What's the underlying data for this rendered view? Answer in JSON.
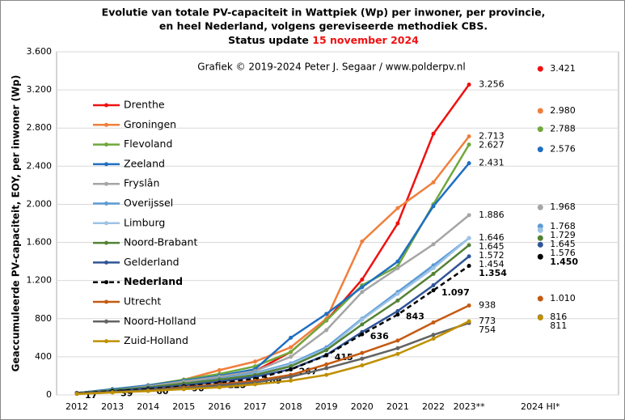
{
  "chart_data": {
    "type": "line",
    "title": [
      "Evolutie van totale PV-capaciteit in Wattpiek (Wp) per inwoner, per provincie,",
      "en heel Nederland, volgens gereviseerde methodiek CBS."
    ],
    "status_label": "Status update",
    "status_date": "15 november 2024",
    "annotation": "Grafiek © 2019-2024 Peter J. Segaar / www.polderpv.nl",
    "ylabel": "Geaccumuleerde PV-capaciteit, EOY, per inwoner (Wp)",
    "categories": [
      "2012",
      "2013",
      "2014",
      "2015",
      "2016",
      "2017",
      "2018",
      "2019",
      "2020",
      "2021",
      "2022",
      "2023**",
      null,
      "2024 HI*"
    ],
    "ylim": [
      0,
      3600
    ],
    "yticks": [
      0,
      400,
      800,
      {
        "value": 1200,
        "label": "1.200"
      },
      {
        "value": 1600,
        "label": "1.600"
      },
      {
        "value": 2000,
        "label": "2.000"
      },
      {
        "value": 2400,
        "label": "2.400"
      },
      {
        "value": 2800,
        "label": "2.800"
      },
      {
        "value": 3200,
        "label": "3.200"
      },
      {
        "value": 3600,
        "label": "3.600"
      }
    ],
    "grid": true,
    "legend": "upper left",
    "series": [
      {
        "name": "Drenthe",
        "color": "#ee1111",
        "values": [
          20,
          50,
          80,
          130,
          180,
          250,
          450,
          780,
          1210,
          1800,
          2740,
          3256,
          null,
          3421
        ],
        "value_labels": [
          null,
          null,
          null,
          null,
          null,
          null,
          null,
          null,
          null,
          null,
          null,
          "3.256",
          null,
          "3.421"
        ]
      },
      {
        "name": "Groningen",
        "color": "#f07f3c",
        "values": [
          20,
          50,
          100,
          160,
          260,
          350,
          500,
          800,
          1610,
          1960,
          2230,
          2713,
          null,
          2980
        ],
        "value_labels": [
          null,
          null,
          null,
          null,
          null,
          null,
          null,
          null,
          null,
          null,
          null,
          "2.713",
          null,
          "2.980"
        ]
      },
      {
        "name": "Flevoland",
        "color": "#70a83b",
        "values": [
          20,
          60,
          100,
          160,
          220,
          300,
          450,
          780,
          1150,
          1350,
          2000,
          2627,
          null,
          2788
        ],
        "value_labels": [
          null,
          null,
          null,
          null,
          null,
          null,
          null,
          null,
          null,
          null,
          null,
          "2.627",
          null,
          "2.788"
        ]
      },
      {
        "name": "Zeeland",
        "color": "#1f6fc1",
        "values": [
          20,
          60,
          100,
          150,
          200,
          270,
          600,
          850,
          1130,
          1400,
          1980,
          2431,
          null,
          2576
        ],
        "value_labels": [
          null,
          null,
          null,
          null,
          null,
          null,
          null,
          null,
          null,
          null,
          null,
          "2.431",
          null,
          "2.576"
        ]
      },
      {
        "name": "Fryslân",
        "color": "#a5a5a5",
        "values": [
          20,
          50,
          90,
          140,
          190,
          250,
          400,
          680,
          1080,
          1330,
          1580,
          1886,
          null,
          1968
        ],
        "value_labels": [
          null,
          null,
          null,
          null,
          null,
          null,
          null,
          null,
          null,
          null,
          null,
          "1.886",
          null,
          "1.968"
        ]
      },
      {
        "name": "Overijssel",
        "color": "#5b9bd5",
        "values": [
          20,
          50,
          80,
          120,
          170,
          230,
          330,
          500,
          800,
          1080,
          1360,
          1645,
          null,
          1768
        ],
        "value_labels": [
          null,
          null,
          null,
          null,
          null,
          null,
          null,
          null,
          null,
          null,
          null,
          "1.645",
          null,
          "1.768"
        ]
      },
      {
        "name": "Limburg",
        "color": "#9dc3e6",
        "values": [
          20,
          50,
          80,
          120,
          160,
          220,
          320,
          480,
          790,
          1060,
          1330,
          1646,
          null,
          1729
        ],
        "value_labels": [
          null,
          null,
          null,
          null,
          null,
          null,
          null,
          null,
          null,
          null,
          null,
          "1.646",
          null,
          "1.729"
        ]
      },
      {
        "name": "Noord-Brabant",
        "color": "#548235",
        "values": [
          20,
          50,
          80,
          120,
          160,
          210,
          300,
          470,
          740,
          990,
          1270,
          1572,
          null,
          1645
        ],
        "value_labels": [
          null,
          null,
          null,
          null,
          null,
          null,
          null,
          null,
          null,
          null,
          null,
          "1.572",
          null,
          "1.645"
        ]
      },
      {
        "name": "Gelderland",
        "color": "#2f5597",
        "values": [
          20,
          40,
          70,
          100,
          140,
          190,
          270,
          420,
          660,
          880,
          1150,
          1454,
          null,
          1576
        ],
        "value_labels": [
          null,
          null,
          null,
          null,
          null,
          null,
          null,
          null,
          null,
          null,
          null,
          "1.454",
          null,
          "1.576"
        ]
      },
      {
        "name": "Nederland",
        "color": "#000000",
        "dashed": true,
        "bold": true,
        "values": [
          17,
          39,
          60,
          90,
          125,
          169,
          267,
          415,
          636,
          843,
          1097,
          1354,
          null,
          1450
        ],
        "value_labels": [
          "17",
          "39",
          "60",
          "90",
          "125",
          "169",
          "267",
          "415",
          "636",
          "843",
          "1.097",
          "1.354",
          null,
          "1.450"
        ]
      },
      {
        "name": "Utrecht",
        "color": "#c55a11",
        "values": [
          15,
          30,
          50,
          80,
          110,
          150,
          210,
          320,
          440,
          570,
          760,
          938,
          null,
          1010
        ],
        "value_labels": [
          null,
          null,
          null,
          null,
          null,
          null,
          null,
          null,
          null,
          null,
          null,
          "938",
          null,
          "1.010"
        ]
      },
      {
        "name": "Noord-Holland",
        "color": "#636363",
        "values": [
          15,
          30,
          50,
          70,
          100,
          130,
          190,
          280,
          380,
          490,
          630,
          754,
          null,
          816
        ],
        "value_labels": [
          null,
          null,
          null,
          null,
          null,
          null,
          null,
          null,
          null,
          null,
          null,
          "754",
          null,
          "816"
        ]
      },
      {
        "name": "Zuid-Holland",
        "color": "#bf9000",
        "values": [
          10,
          25,
          40,
          60,
          80,
          110,
          150,
          210,
          310,
          430,
          590,
          773,
          null,
          811
        ],
        "value_labels": [
          null,
          null,
          null,
          null,
          null,
          null,
          null,
          null,
          null,
          null,
          null,
          "773",
          null,
          "811"
        ]
      }
    ]
  }
}
